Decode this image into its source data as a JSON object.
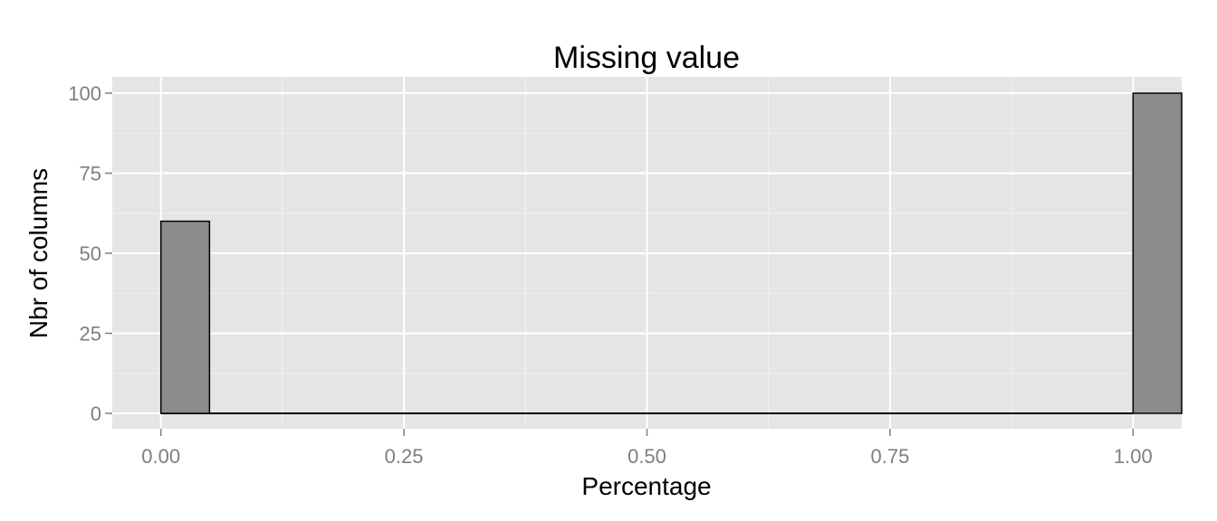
{
  "chart_data": {
    "type": "bar",
    "title": "Missing value",
    "xlabel": "Percentage",
    "ylabel": "Nbr of columns",
    "xlim": [
      -0.05,
      1.05
    ],
    "ylim": [
      0,
      100
    ],
    "x_ticks": [
      0,
      0.25,
      0.5,
      0.75,
      1
    ],
    "x_tick_labels": [
      "0.00",
      "0.25",
      "0.50",
      "0.75",
      "1.00"
    ],
    "y_ticks": [
      0,
      25,
      50,
      75,
      100
    ],
    "y_tick_labels": [
      "0",
      "25",
      "50",
      "75",
      "100"
    ],
    "bin_width": 0.05,
    "bins": [
      {
        "x": 0.0,
        "value": 60
      },
      {
        "x": 1.0,
        "value": 100
      }
    ],
    "grid": true,
    "colors": {
      "panel": "#e5e5e5",
      "grid_major": "#ffffff",
      "grid_minor": "#f2f2f2",
      "bar_fill": "#8c8c8c",
      "bar_outline": "#000000"
    }
  }
}
